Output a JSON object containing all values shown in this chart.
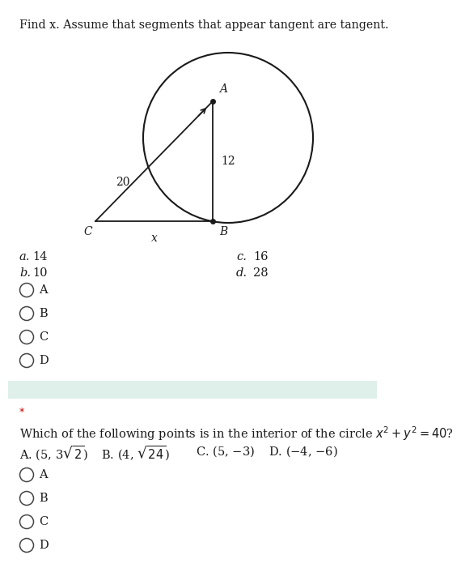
{
  "title1": "Find x. Assume that segments that appear tangent are tangent.",
  "label_20": "20",
  "label_12": "12",
  "label_x": "x",
  "label_A": "A",
  "label_B": "B",
  "label_C": "C",
  "choices_q1_left": [
    [
      "a.",
      "14"
    ],
    [
      "b.",
      "10"
    ]
  ],
  "choices_q1_right": [
    [
      "c.",
      "16"
    ],
    [
      "d.",
      "28"
    ]
  ],
  "radio_labels_q1": [
    "A",
    "B",
    "C",
    "D"
  ],
  "star_text": "*",
  "q2_line1": "Which of the following points is in the interior of the circle $x^2 + y^2 = 40$?",
  "radio_labels_q2": [
    "A",
    "B",
    "C",
    "D"
  ],
  "bg_color": "#ffffff",
  "text_color": "#1a1a1a",
  "separator_color": "#dff0eb",
  "radio_color": "#444444",
  "font_size_title": 10.2,
  "font_size_body": 10.5,
  "font_size_radio": 10.5,
  "font_size_diagram": 10.0
}
